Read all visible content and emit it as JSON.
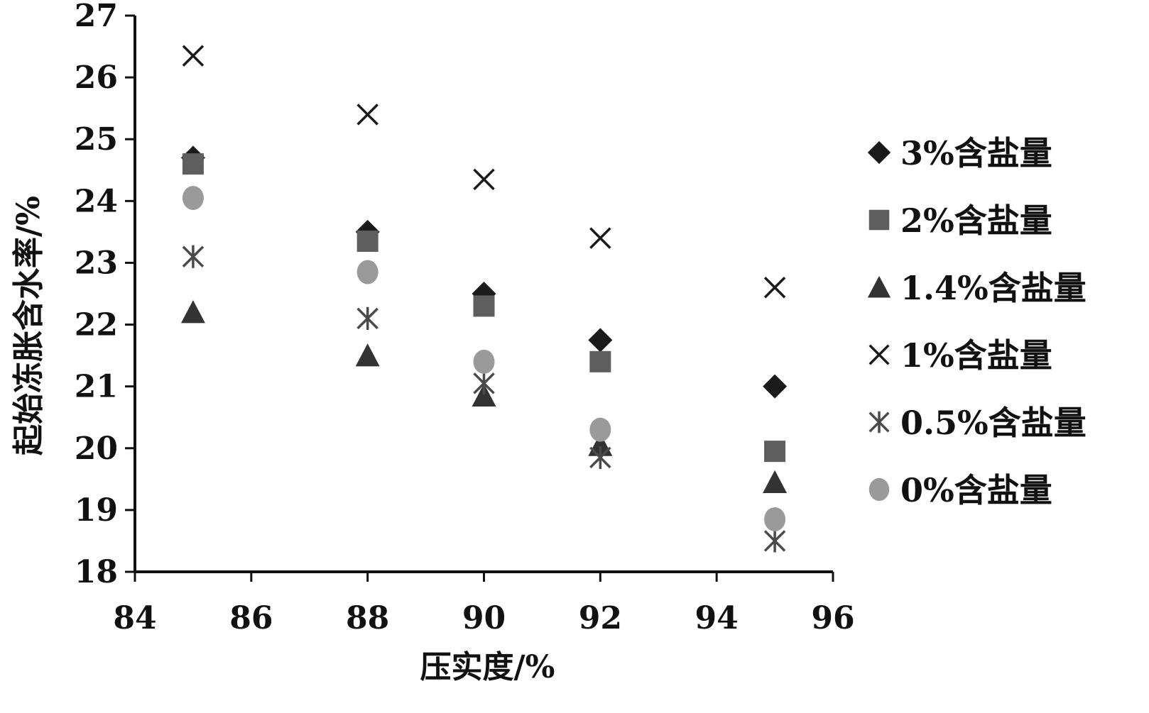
{
  "chart_data": {
    "type": "scatter",
    "title": "",
    "xlabel": "压实度/%",
    "ylabel": "起始冻胀含水率/%",
    "xlim": [
      84,
      96
    ],
    "ylim": [
      18,
      27
    ],
    "x_ticks": [
      "84",
      "86",
      "88",
      "90",
      "92",
      "94",
      "96"
    ],
    "y_ticks": [
      "18",
      "19",
      "20",
      "21",
      "22",
      "23",
      "24",
      "25",
      "26",
      "27"
    ],
    "x": [
      85,
      88,
      90,
      92,
      95
    ],
    "grid": false,
    "legend_position": "right",
    "series": [
      {
        "name": "3%含盐量",
        "marker": "diamond",
        "color": "#1a1a1a",
        "values": [
          24.7,
          23.5,
          22.5,
          21.75,
          21.0
        ]
      },
      {
        "name": "2%含盐量",
        "marker": "square",
        "color": "#5e5e5e",
        "values": [
          24.6,
          23.35,
          22.3,
          21.4,
          19.95
        ]
      },
      {
        "name": "1.4%含盐量",
        "marker": "triangle",
        "color": "#333333",
        "values": [
          22.2,
          21.5,
          20.85,
          20.05,
          19.45
        ]
      },
      {
        "name": "1%含盐量",
        "marker": "x",
        "color": "#1a1a1a",
        "values": [
          26.35,
          25.4,
          24.35,
          23.4,
          22.6
        ]
      },
      {
        "name": "0.5%含盐量",
        "marker": "star",
        "color": "#4a4a4a",
        "values": [
          23.1,
          22.1,
          21.05,
          19.85,
          18.5
        ]
      },
      {
        "name": "0%含盐量",
        "marker": "circle",
        "color": "#9a9a9a",
        "values": [
          24.05,
          22.85,
          21.4,
          20.3,
          18.85
        ]
      }
    ]
  }
}
